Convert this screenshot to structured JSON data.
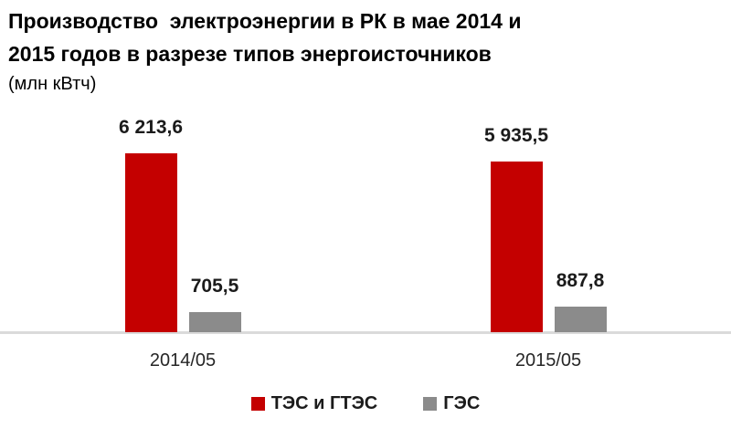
{
  "title": {
    "line1": "Производство  электроэнергии в РК в мае 2014 и",
    "line2": "2015 годов в разрезе типов энергоисточников",
    "unit": "(млн кВтч)"
  },
  "colors": {
    "tes_red": "#c40000",
    "ges_gray": "#8b8b8b",
    "axis_line": "#dadada",
    "label_text": "#1b1b1b"
  },
  "chart_data": {
    "type": "bar",
    "categories": [
      "2014/05",
      "2015/05"
    ],
    "series": [
      {
        "name": "ТЭС и ГТЭС",
        "color": "#c40000",
        "values": [
          6213.6,
          5935.5
        ],
        "labels_display": [
          "6 213,6",
          "5 935,5"
        ]
      },
      {
        "name": "ГЭС",
        "color": "#8b8b8b",
        "values": [
          705.5,
          887.8
        ],
        "labels_display": [
          "705,5",
          "887,8"
        ]
      }
    ],
    "ylim": [
      0,
      6213.6
    ],
    "grid": false,
    "value_labels": "above bars",
    "legend_position": "bottom-center"
  },
  "legend": {
    "items": [
      {
        "label": "ТЭС и ГТЭС",
        "color": "#c40000"
      },
      {
        "label": "ГЭС",
        "color": "#8b8b8b"
      }
    ]
  }
}
